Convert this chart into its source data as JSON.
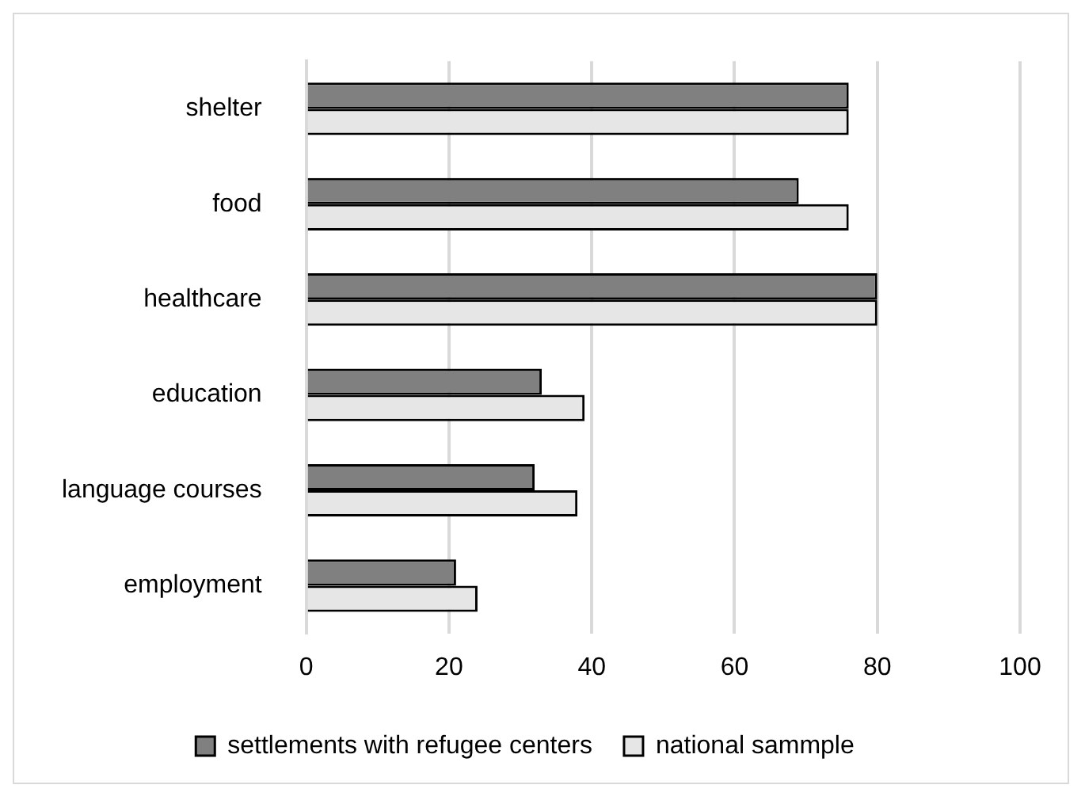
{
  "chart_data": {
    "type": "bar",
    "orientation": "horizontal",
    "categories": [
      "shelter",
      "food",
      "healthcare",
      "education",
      "language courses",
      "employment"
    ],
    "series": [
      {
        "name": "settlements with refugee centers",
        "color": "#808080",
        "values": [
          76,
          69,
          80,
          33,
          32,
          21
        ]
      },
      {
        "name": "national sammple",
        "color": "#e6e6e6",
        "values": [
          76,
          76,
          80,
          39,
          38,
          24
        ]
      }
    ],
    "xlim": [
      0,
      100
    ],
    "xticks": [
      0,
      20,
      40,
      60,
      80,
      100
    ],
    "grid": "x",
    "legend": "bottom"
  }
}
